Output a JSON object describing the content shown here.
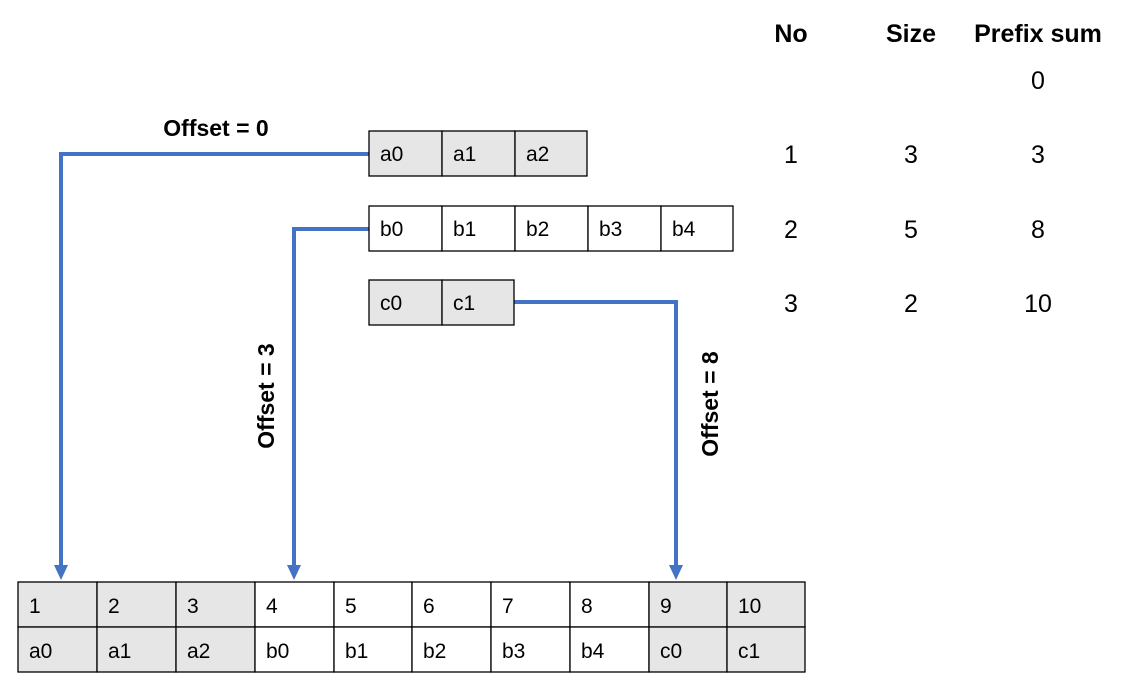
{
  "colors": {
    "cell_shaded": "#e6e6e6",
    "cell_plain": "#ffffff",
    "connector": "#4472c4"
  },
  "table": {
    "headers": [
      "No",
      "Size",
      "Prefix sum"
    ],
    "initial_prefix": "0",
    "rows": [
      {
        "no": "1",
        "size": "3",
        "prefix": "3"
      },
      {
        "no": "2",
        "size": "5",
        "prefix": "8"
      },
      {
        "no": "3",
        "size": "2",
        "prefix": "10"
      }
    ]
  },
  "arrays": [
    {
      "id": "a",
      "cells": [
        "a0",
        "a1",
        "a2"
      ],
      "shaded": true
    },
    {
      "id": "b",
      "cells": [
        "b0",
        "b1",
        "b2",
        "b3",
        "b4"
      ],
      "shaded": false
    },
    {
      "id": "c",
      "cells": [
        "c0",
        "c1"
      ],
      "shaded": true
    }
  ],
  "offsets": [
    {
      "array": "a",
      "label": "Offset = 0",
      "target_index": 1
    },
    {
      "array": "b",
      "label": "Offset = 3",
      "target_index": 4
    },
    {
      "array": "c",
      "label": "Offset = 8",
      "target_index": 9
    }
  ],
  "result": {
    "indices": [
      "1",
      "2",
      "3",
      "4",
      "5",
      "6",
      "7",
      "8",
      "9",
      "10"
    ],
    "values": [
      "a0",
      "a1",
      "a2",
      "b0",
      "b1",
      "b2",
      "b3",
      "b4",
      "c0",
      "c1"
    ],
    "shaded": [
      true,
      true,
      true,
      false,
      false,
      false,
      false,
      false,
      true,
      true
    ]
  }
}
